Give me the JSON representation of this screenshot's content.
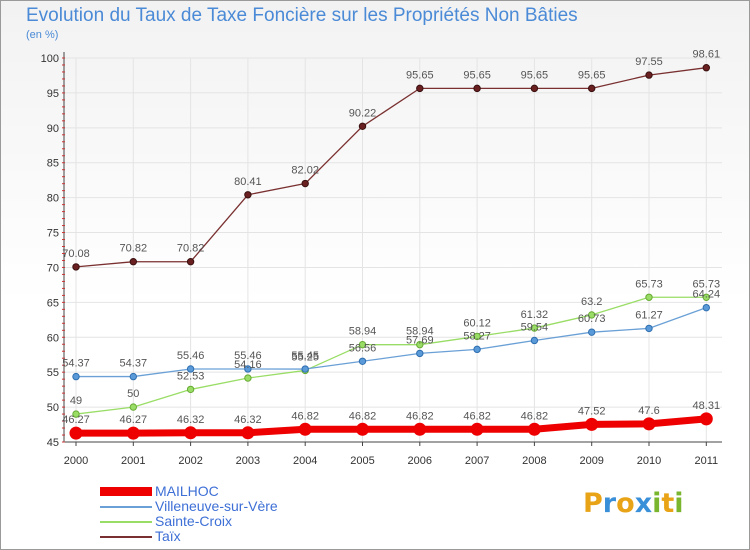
{
  "title": "Evolution du Taux de Taxe Foncière sur les Propriétés Non Bâties",
  "unit_label": "(en %)",
  "brand": {
    "text": "Proxiti",
    "letters": [
      "P",
      "r",
      "o",
      "x",
      "i",
      "t",
      "i"
    ],
    "colors": [
      "#e8a317",
      "#3a8fd9",
      "#e8a317",
      "#3a8fd9",
      "#7ab52e",
      "#e8a317",
      "#7ab52e"
    ]
  },
  "chart_data": {
    "type": "line",
    "title": "Evolution du Taux de Taxe Foncière sur les Propriétés Non Bâties",
    "ylabel": "(en %)",
    "xlabel": "",
    "ylim": [
      45,
      100
    ],
    "yticks": [
      45,
      50,
      55,
      60,
      65,
      70,
      75,
      80,
      85,
      90,
      95,
      100
    ],
    "categories": [
      "2000",
      "2001",
      "2002",
      "2003",
      "2004",
      "2005",
      "2006",
      "2007",
      "2008",
      "2009",
      "2010",
      "2011"
    ],
    "series": [
      {
        "name": "MAILHOC",
        "color": "#ee0000",
        "values": [
          46.27,
          46.27,
          46.32,
          46.32,
          46.82,
          46.82,
          46.82,
          46.82,
          46.82,
          47.52,
          47.6,
          48.31
        ],
        "labels": [
          "46.27",
          "46.27",
          "46.32",
          "46.32",
          "46.82",
          "46.82",
          "46.82",
          "46.82",
          "46.82",
          "47.52",
          "47.6",
          "48.31"
        ]
      },
      {
        "name": "Villeneuve-sur-Vère",
        "color": "#6aa0d6",
        "values": [
          54.37,
          54.37,
          55.46,
          55.46,
          55.45,
          56.56,
          57.69,
          58.27,
          59.54,
          60.73,
          61.27,
          64.24
        ],
        "labels": [
          "54.37",
          "54.37",
          "55.46",
          "55.46",
          "55.45",
          "56.56",
          "57.69",
          "58.27",
          "59.54",
          "60.73",
          "61.27",
          "64.24"
        ]
      },
      {
        "name": "Sainte-Croix",
        "color": "#99dd66",
        "values": [
          49,
          50,
          52.53,
          54.16,
          55.25,
          58.94,
          58.94,
          60.12,
          61.32,
          63.2,
          65.73,
          65.73
        ],
        "labels": [
          "49",
          "50",
          "52.53",
          "54.16",
          "55.25",
          "58.94",
          "58.94",
          "60.12",
          "61.32",
          "63.2",
          "65.73",
          "65.73"
        ]
      },
      {
        "name": "Taïx",
        "color": "#7a3030",
        "values": [
          70.08,
          70.82,
          70.82,
          80.41,
          82.02,
          90.22,
          95.65,
          95.65,
          95.65,
          95.65,
          97.55,
          98.61
        ],
        "labels": [
          "70.08",
          "70.82",
          "70.82",
          "80.41",
          "82.02",
          "90.22",
          "95.65",
          "95.65",
          "95.65",
          "95.65",
          "97.55",
          "98.61"
        ]
      }
    ],
    "legend_position": "bottom-left"
  }
}
